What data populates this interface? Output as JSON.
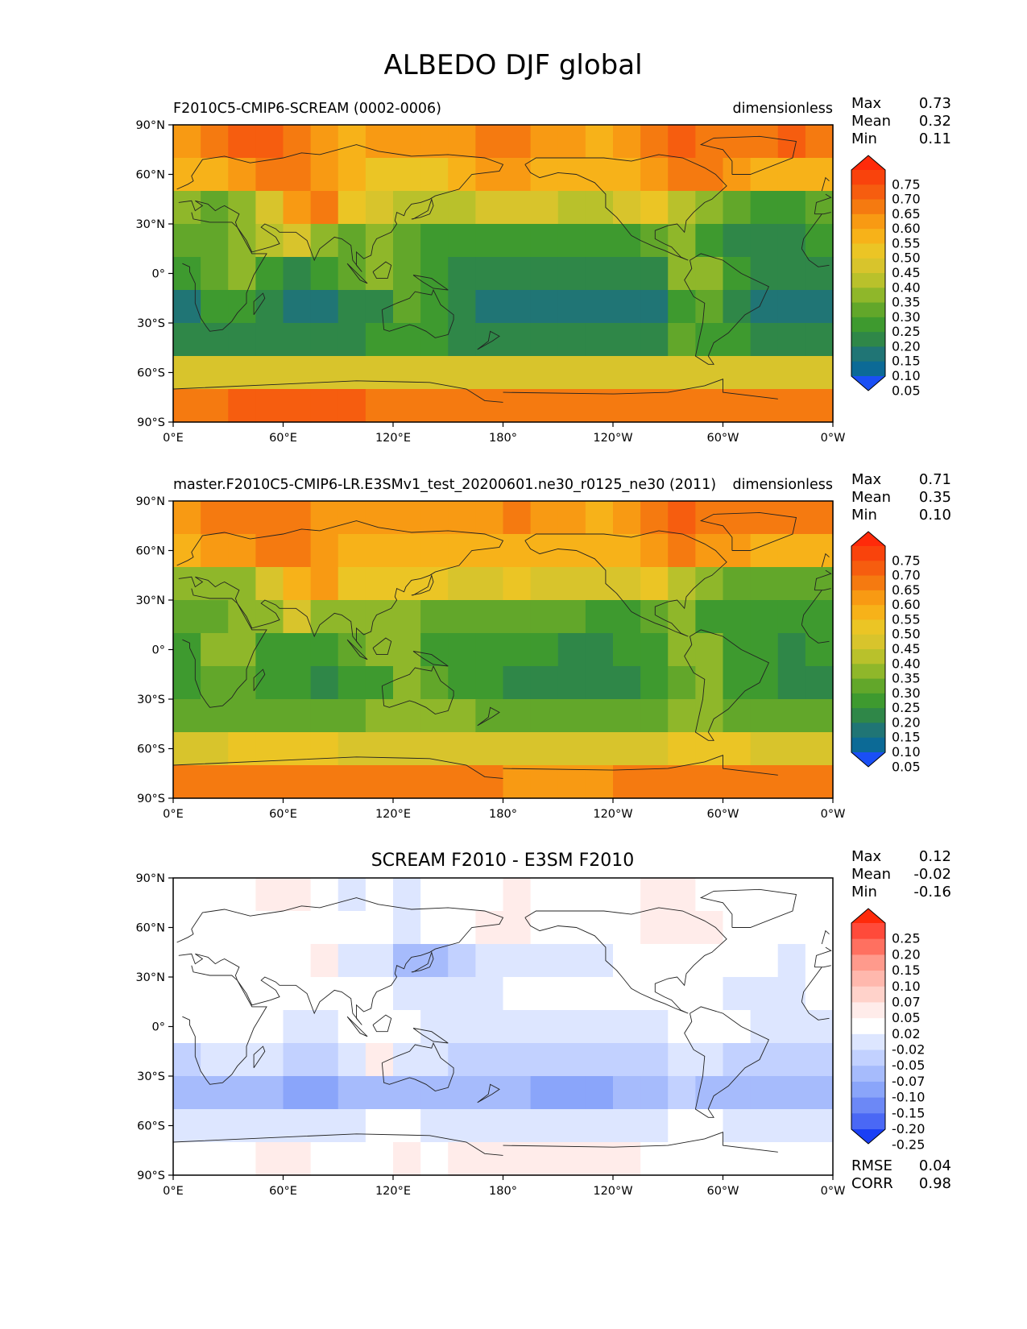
{
  "figure": {
    "title": "ALBEDO DJF global"
  },
  "axes": {
    "lat_ticks": [
      "90°N",
      "60°N",
      "30°N",
      "0°",
      "30°S",
      "60°S",
      "90°S"
    ],
    "lon_ticks": [
      "0°E",
      "60°E",
      "120°E",
      "180°",
      "120°W",
      "60°W",
      "0°W"
    ]
  },
  "stat_labels": {
    "max": "Max",
    "mean": "Mean",
    "min": "Min",
    "rmse": "RMSE",
    "corr": "CORR"
  },
  "chart_data": [
    {
      "type": "heatmap",
      "title": "F2010C5-CMIP6-SCREAM (0002-0006)",
      "units": "dimensionless",
      "xlabel": "",
      "ylabel": "",
      "xlim": [
        0,
        360
      ],
      "ylim": [
        -90,
        90
      ],
      "stats": {
        "max": "0.73",
        "mean": "0.32",
        "min": "0.11"
      },
      "colorbar": {
        "levels": [
          "0.75",
          "0.70",
          "0.65",
          "0.60",
          "0.55",
          "0.50",
          "0.45",
          "0.40",
          "0.35",
          "0.30",
          "0.25",
          "0.20",
          "0.15",
          "0.10",
          "0.05"
        ],
        "colors": [
          "#ff2a0a",
          "#f9430c",
          "#f65d0f",
          "#f57a10",
          "#f89a13",
          "#f7b219",
          "#ebc525",
          "#d8c42c",
          "#b9c12b",
          "#8fb72a",
          "#62a72a",
          "#3e9a2f",
          "#2f8748",
          "#207575",
          "#0c6a96",
          "#1a4ff5"
        ]
      },
      "field_values": [
        [
          0.58,
          0.62,
          0.65,
          0.66,
          0.62,
          0.55,
          0.52,
          0.55,
          0.55,
          0.56,
          0.58,
          0.6,
          0.62,
          0.58,
          0.55,
          0.52,
          0.55,
          0.62,
          0.68,
          0.63,
          0.6,
          0.62,
          0.65,
          0.6
        ],
        [
          0.5,
          0.53,
          0.56,
          0.6,
          0.6,
          0.55,
          0.52,
          0.48,
          0.47,
          0.49,
          0.52,
          0.55,
          0.55,
          0.52,
          0.5,
          0.5,
          0.52,
          0.58,
          0.62,
          0.6,
          0.55,
          0.52,
          0.5,
          0.5
        ],
        [
          0.3,
          0.28,
          0.32,
          0.42,
          0.55,
          0.62,
          0.45,
          0.42,
          0.38,
          0.36,
          0.37,
          0.4,
          0.42,
          0.4,
          0.38,
          0.35,
          0.42,
          0.48,
          0.36,
          0.3,
          0.26,
          0.24,
          0.22,
          0.26
        ],
        [
          0.26,
          0.27,
          0.3,
          0.35,
          0.4,
          0.32,
          0.28,
          0.3,
          0.27,
          0.24,
          0.22,
          0.22,
          0.23,
          0.24,
          0.24,
          0.22,
          0.22,
          0.28,
          0.3,
          0.22,
          0.18,
          0.17,
          0.17,
          0.22
        ],
        [
          0.2,
          0.28,
          0.3,
          0.22,
          0.18,
          0.2,
          0.26,
          0.3,
          0.28,
          0.2,
          0.17,
          0.16,
          0.17,
          0.16,
          0.15,
          0.15,
          0.16,
          0.18,
          0.3,
          0.32,
          0.22,
          0.16,
          0.15,
          0.16
        ],
        [
          0.14,
          0.22,
          0.24,
          0.18,
          0.14,
          0.12,
          0.15,
          0.17,
          0.26,
          0.24,
          0.16,
          0.14,
          0.12,
          0.12,
          0.11,
          0.11,
          0.12,
          0.14,
          0.24,
          0.28,
          0.18,
          0.14,
          0.12,
          0.12
        ],
        [
          0.18,
          0.18,
          0.17,
          0.17,
          0.17,
          0.18,
          0.18,
          0.2,
          0.2,
          0.2,
          0.19,
          0.18,
          0.18,
          0.17,
          0.17,
          0.17,
          0.18,
          0.18,
          0.25,
          0.22,
          0.2,
          0.19,
          0.18,
          0.18
        ],
        [
          0.4,
          0.41,
          0.42,
          0.42,
          0.42,
          0.42,
          0.42,
          0.42,
          0.41,
          0.4,
          0.4,
          0.4,
          0.4,
          0.4,
          0.4,
          0.41,
          0.42,
          0.42,
          0.43,
          0.42,
          0.42,
          0.41,
          0.41,
          0.4
        ],
        [
          0.63,
          0.64,
          0.65,
          0.66,
          0.66,
          0.65,
          0.65,
          0.64,
          0.64,
          0.63,
          0.63,
          0.62,
          0.62,
          0.6,
          0.6,
          0.61,
          0.62,
          0.62,
          0.63,
          0.63,
          0.64,
          0.64,
          0.64,
          0.63
        ]
      ]
    },
    {
      "type": "heatmap",
      "title": "master.F2010C5-CMIP6-LR.E3SMv1_test_20200601.ne30_r0125_ne30 (2011)",
      "units": "dimensionless",
      "xlabel": "",
      "ylabel": "",
      "xlim": [
        0,
        360
      ],
      "ylim": [
        -90,
        90
      ],
      "stats": {
        "max": "0.71",
        "mean": "0.35",
        "min": "0.10"
      },
      "colorbar": {
        "levels": [
          "0.75",
          "0.70",
          "0.65",
          "0.60",
          "0.55",
          "0.50",
          "0.45",
          "0.40",
          "0.35",
          "0.30",
          "0.25",
          "0.20",
          "0.15",
          "0.10",
          "0.05"
        ],
        "colors": [
          "#ff2a0a",
          "#f9430c",
          "#f65d0f",
          "#f57a10",
          "#f89a13",
          "#f7b219",
          "#ebc525",
          "#d8c42c",
          "#b9c12b",
          "#8fb72a",
          "#62a72a",
          "#3e9a2f",
          "#2f8748",
          "#207575",
          "#0c6a96",
          "#1a4ff5"
        ]
      },
      "field_values": [
        [
          0.58,
          0.62,
          0.64,
          0.64,
          0.6,
          0.56,
          0.55,
          0.57,
          0.58,
          0.58,
          0.58,
          0.58,
          0.6,
          0.57,
          0.55,
          0.54,
          0.56,
          0.6,
          0.66,
          0.62,
          0.6,
          0.62,
          0.64,
          0.6
        ],
        [
          0.52,
          0.55,
          0.58,
          0.6,
          0.6,
          0.56,
          0.54,
          0.5,
          0.5,
          0.5,
          0.52,
          0.53,
          0.53,
          0.52,
          0.5,
          0.5,
          0.52,
          0.56,
          0.6,
          0.58,
          0.55,
          0.52,
          0.5,
          0.5
        ],
        [
          0.32,
          0.3,
          0.34,
          0.44,
          0.54,
          0.58,
          0.48,
          0.45,
          0.48,
          0.45,
          0.44,
          0.44,
          0.45,
          0.44,
          0.42,
          0.4,
          0.42,
          0.48,
          0.38,
          0.32,
          0.28,
          0.26,
          0.25,
          0.28
        ],
        [
          0.27,
          0.28,
          0.3,
          0.34,
          0.4,
          0.34,
          0.3,
          0.3,
          0.3,
          0.28,
          0.26,
          0.25,
          0.25,
          0.25,
          0.25,
          0.24,
          0.24,
          0.28,
          0.3,
          0.24,
          0.22,
          0.2,
          0.2,
          0.24
        ],
        [
          0.22,
          0.3,
          0.32,
          0.24,
          0.22,
          0.24,
          0.28,
          0.32,
          0.3,
          0.24,
          0.22,
          0.21,
          0.21,
          0.2,
          0.19,
          0.18,
          0.2,
          0.22,
          0.32,
          0.34,
          0.24,
          0.2,
          0.19,
          0.2
        ],
        [
          0.2,
          0.26,
          0.28,
          0.22,
          0.2,
          0.18,
          0.2,
          0.24,
          0.3,
          0.28,
          0.22,
          0.2,
          0.19,
          0.19,
          0.17,
          0.17,
          0.18,
          0.2,
          0.28,
          0.32,
          0.24,
          0.2,
          0.19,
          0.19
        ],
        [
          0.28,
          0.28,
          0.28,
          0.28,
          0.28,
          0.28,
          0.28,
          0.3,
          0.3,
          0.3,
          0.3,
          0.29,
          0.28,
          0.28,
          0.28,
          0.28,
          0.28,
          0.28,
          0.32,
          0.3,
          0.29,
          0.29,
          0.28,
          0.28
        ],
        [
          0.44,
          0.44,
          0.45,
          0.45,
          0.45,
          0.45,
          0.44,
          0.44,
          0.44,
          0.43,
          0.43,
          0.43,
          0.43,
          0.43,
          0.43,
          0.43,
          0.44,
          0.44,
          0.45,
          0.45,
          0.45,
          0.44,
          0.44,
          0.44
        ],
        [
          0.62,
          0.63,
          0.64,
          0.64,
          0.64,
          0.64,
          0.64,
          0.63,
          0.62,
          0.62,
          0.61,
          0.6,
          0.58,
          0.56,
          0.57,
          0.58,
          0.6,
          0.61,
          0.62,
          0.62,
          0.63,
          0.63,
          0.63,
          0.62
        ]
      ]
    },
    {
      "type": "heatmap",
      "title": "SCREAM F2010 - E3SM F2010",
      "xlabel": "",
      "ylabel": "",
      "xlim": [
        0,
        360
      ],
      "ylim": [
        -90,
        90
      ],
      "stats": {
        "max": "0.12",
        "mean": "-0.02",
        "min": "-0.16",
        "rmse": "0.04",
        "corr": "0.98"
      },
      "colorbar": {
        "levels": [
          "0.25",
          "0.20",
          "0.15",
          "0.10",
          "0.07",
          "0.05",
          "0.02",
          "-0.02",
          "-0.05",
          "-0.07",
          "-0.10",
          "-0.15",
          "-0.20",
          "-0.25"
        ],
        "colors": [
          "#ff2a0a",
          "#ff4a3a",
          "#ff7060",
          "#ff9a8c",
          "#ffb8ad",
          "#ffd2ca",
          "#ffecea",
          "#ffffff",
          "#dde6ff",
          "#c2d1ff",
          "#a6bbfc",
          "#8aa5fa",
          "#6c88f6",
          "#4a68f5",
          "#1a3ff5"
        ]
      },
      "field_values": [
        [
          0.0,
          0.01,
          0.01,
          0.02,
          0.02,
          -0.01,
          -0.03,
          -0.02,
          -0.03,
          -0.02,
          -0.01,
          0.0,
          0.02,
          0.01,
          0.0,
          -0.02,
          -0.01,
          0.02,
          0.02,
          0.01,
          0.0,
          0.0,
          0.01,
          0.0
        ],
        [
          -0.02,
          -0.02,
          -0.02,
          0.0,
          0.0,
          -0.01,
          -0.02,
          -0.02,
          -0.03,
          -0.01,
          0.0,
          0.02,
          0.02,
          0.0,
          0.0,
          0.0,
          0.0,
          0.02,
          0.02,
          0.02,
          0.0,
          0.0,
          0.0,
          -0.02
        ],
        [
          -0.02,
          -0.02,
          -0.02,
          -0.02,
          0.01,
          0.04,
          -0.03,
          -0.03,
          -0.1,
          -0.09,
          -0.07,
          -0.04,
          -0.03,
          -0.04,
          -0.04,
          -0.05,
          0.0,
          0.0,
          -0.02,
          -0.02,
          -0.02,
          -0.02,
          -0.03,
          -0.02
        ],
        [
          -0.01,
          -0.01,
          0.0,
          0.01,
          0.0,
          -0.02,
          -0.02,
          0.0,
          -0.03,
          -0.04,
          -0.04,
          -0.03,
          -0.02,
          -0.01,
          -0.01,
          -0.02,
          -0.02,
          0.0,
          0.0,
          -0.02,
          -0.04,
          -0.03,
          -0.03,
          -0.02
        ],
        [
          -0.02,
          -0.02,
          -0.02,
          -0.02,
          -0.04,
          -0.04,
          -0.02,
          -0.02,
          -0.02,
          -0.04,
          -0.05,
          -0.05,
          -0.04,
          -0.04,
          -0.04,
          -0.03,
          -0.04,
          -0.04,
          -0.02,
          -0.02,
          -0.02,
          -0.04,
          -0.04,
          -0.04
        ],
        [
          -0.06,
          -0.04,
          -0.04,
          -0.04,
          -0.06,
          -0.06,
          -0.05,
          0.04,
          -0.04,
          -0.04,
          -0.06,
          -0.06,
          -0.07,
          -0.07,
          -0.06,
          -0.06,
          -0.06,
          -0.06,
          -0.04,
          -0.04,
          -0.06,
          -0.06,
          -0.07,
          -0.07
        ],
        [
          -0.1,
          -0.09,
          -0.09,
          -0.1,
          -0.11,
          -0.11,
          -0.1,
          -0.1,
          -0.1,
          -0.1,
          -0.09,
          -0.09,
          -0.1,
          -0.11,
          -0.11,
          -0.11,
          -0.1,
          -0.1,
          -0.07,
          -0.08,
          -0.09,
          -0.09,
          -0.1,
          -0.1
        ],
        [
          -0.04,
          -0.04,
          -0.04,
          -0.04,
          -0.04,
          -0.03,
          -0.03,
          -0.02,
          -0.02,
          -0.03,
          -0.03,
          -0.03,
          -0.03,
          -0.03,
          -0.03,
          -0.03,
          -0.03,
          -0.03,
          -0.02,
          -0.02,
          -0.03,
          -0.03,
          -0.03,
          -0.04
        ],
        [
          0.01,
          0.01,
          0.01,
          0.02,
          0.02,
          0.01,
          0.01,
          0.01,
          0.02,
          0.01,
          0.02,
          0.02,
          0.04,
          0.04,
          0.03,
          0.03,
          0.02,
          0.01,
          0.01,
          0.01,
          0.01,
          0.01,
          0.01,
          0.01
        ]
      ]
    }
  ]
}
